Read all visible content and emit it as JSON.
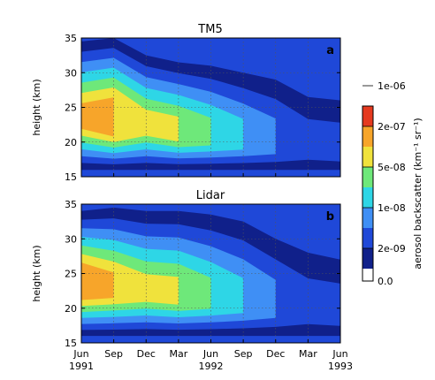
{
  "chart_data": [
    {
      "type": "heatmap",
      "title": "TM5",
      "panel_label": "a",
      "ylabel": "height (km)",
      "ylim": [
        15,
        35
      ],
      "yticks": [
        "15",
        "20",
        "25",
        "30",
        "35"
      ],
      "x_range": [
        "Jun 1991",
        "Jun 1993"
      ],
      "grid": true,
      "layer_profile": [
        {
          "month": "Jun 1991",
          "top_km": 34.5,
          "core_km": 23.5,
          "core_level": 7
        },
        {
          "month": "Sep 1991",
          "top_km": 35.0,
          "core_km": 23.0,
          "core_level": 8
        },
        {
          "month": "Dec 1991",
          "top_km": 32.5,
          "core_km": 22.5,
          "core_level": 6
        },
        {
          "month": "Mar 1992",
          "top_km": 31.5,
          "core_km": 21.5,
          "core_level": 6
        },
        {
          "month": "Jun 1992",
          "top_km": 31.0,
          "core_km": 21.0,
          "core_level": 5
        },
        {
          "month": "Sep 1992",
          "top_km": 30.0,
          "core_km": 20.5,
          "core_level": 4
        },
        {
          "month": "Dec 1992",
          "top_km": 29.0,
          "core_km": 20.0,
          "core_level": 3
        },
        {
          "month": "Mar 1993",
          "top_km": 26.5,
          "core_km": 19.5,
          "core_level": 2
        },
        {
          "month": "Jun 1993",
          "top_km": 26.0,
          "core_km": 19.0,
          "core_level": 2
        }
      ]
    },
    {
      "type": "heatmap",
      "title": "Lidar",
      "panel_label": "b",
      "ylabel": "height (km)",
      "ylim": [
        15,
        35
      ],
      "yticks": [
        "15",
        "20",
        "25",
        "30",
        "35"
      ],
      "xticks": [
        {
          "month": "Jun",
          "year": "1991"
        },
        {
          "month": "Sep",
          "year": ""
        },
        {
          "month": "Dec",
          "year": ""
        },
        {
          "month": "Mar",
          "year": ""
        },
        {
          "month": "Jun",
          "year": "1992"
        },
        {
          "month": "Sep",
          "year": ""
        },
        {
          "month": "Dec",
          "year": ""
        },
        {
          "month": "Mar",
          "year": ""
        },
        {
          "month": "Jun",
          "year": "1993"
        }
      ],
      "grid": true,
      "layer_profile": [
        {
          "month": "Jun 1991",
          "top_km": 34.0,
          "core_km": 23.5,
          "core_level": 8
        },
        {
          "month": "Sep 1991",
          "top_km": 34.5,
          "core_km": 23.0,
          "core_level": 7
        },
        {
          "month": "Dec 1991",
          "top_km": 34.0,
          "core_km": 22.5,
          "core_level": 6
        },
        {
          "month": "Mar 1992",
          "top_km": 34.0,
          "core_km": 22.0,
          "core_level": 6
        },
        {
          "month": "Jun 1992",
          "top_km": 33.5,
          "core_km": 21.5,
          "core_level": 5
        },
        {
          "month": "Sep 1992",
          "top_km": 32.5,
          "core_km": 21.0,
          "core_level": 4
        },
        {
          "month": "Dec 1992",
          "top_km": 30.0,
          "core_km": 20.5,
          "core_level": 3
        },
        {
          "month": "Mar 1993",
          "top_km": 28.0,
          "core_km": 20.0,
          "core_level": 2
        },
        {
          "month": "Jun 1993",
          "top_km": 27.0,
          "core_km": 19.5,
          "core_level": 2
        }
      ]
    }
  ],
  "colorbar": {
    "label": "aerosol backscatter (km⁻¹ sr⁻¹)",
    "tick_labels": [
      "0.0",
      "2e-09",
      "1e-08",
      "5e-08",
      "2e-07",
      "1e-06"
    ],
    "colors": [
      "#ffffff",
      "#10208a",
      "#1f48d8",
      "#3f8ff5",
      "#2ed6e6",
      "#6ee87a",
      "#f0e23c",
      "#f7a52a",
      "#e53a1f"
    ]
  }
}
